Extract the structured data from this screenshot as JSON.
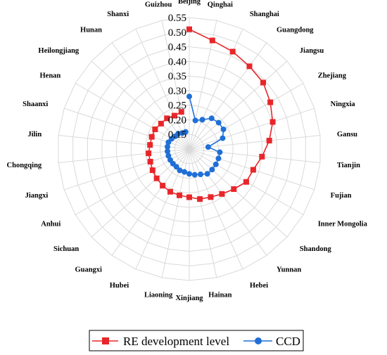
{
  "chart_data": {
    "type": "radar",
    "categories": [
      "Beijing",
      "Qinghai",
      "Shanghai",
      "Guangdong",
      "Jiangsu",
      "Zhejiang",
      "Ningxia",
      "Gansu",
      "Tianjin",
      "Fujian",
      "Inner Mongolia",
      "Shandong",
      "Yunnan",
      "Hebei",
      "Hainan",
      "Xinjiang",
      "Liaoning",
      "Hubei",
      "Guangxi",
      "Sichuan",
      "Anhui",
      "Jiangxi",
      "Chongqing",
      "Jilin",
      "Shaanxi",
      "Henan",
      "Heilongjiang",
      "Hunan",
      "Shanxi",
      "Guizhou"
    ],
    "ticks": [
      "0.15",
      "0.20",
      "0.25",
      "0.30",
      "0.35",
      "0.40",
      "0.45",
      "0.50",
      "0.55"
    ],
    "rlim": [
      0.1,
      0.55
    ],
    "series": [
      {
        "name": "RE development level",
        "color": "#e8262a",
        "marker": "square",
        "values": [
          0.51,
          0.48,
          0.465,
          0.45,
          0.44,
          0.42,
          0.4,
          0.375,
          0.35,
          0.33,
          0.325,
          0.305,
          0.29,
          0.28,
          0.275,
          0.265,
          0.262,
          0.26,
          0.255,
          0.25,
          0.245,
          0.24,
          0.24,
          0.235,
          0.235,
          0.235,
          0.23,
          0.23,
          0.225,
          0.23
        ]
      },
      {
        "name": "CCD",
        "color": "#1f6fd6",
        "marker": "circle",
        "values": [
          0.28,
          0.2,
          0.21,
          0.23,
          0.235,
          0.235,
          0.22,
          0.165,
          0.205,
          0.205,
          0.205,
          0.205,
          0.205,
          0.195,
          0.19,
          0.185,
          0.18,
          0.18,
          0.175,
          0.175,
          0.175,
          0.175,
          0.175,
          0.175,
          0.175,
          0.17,
          0.165,
          0.165,
          0.16,
          0.16
        ]
      }
    ],
    "legend_position": "bottom",
    "grid": true
  }
}
